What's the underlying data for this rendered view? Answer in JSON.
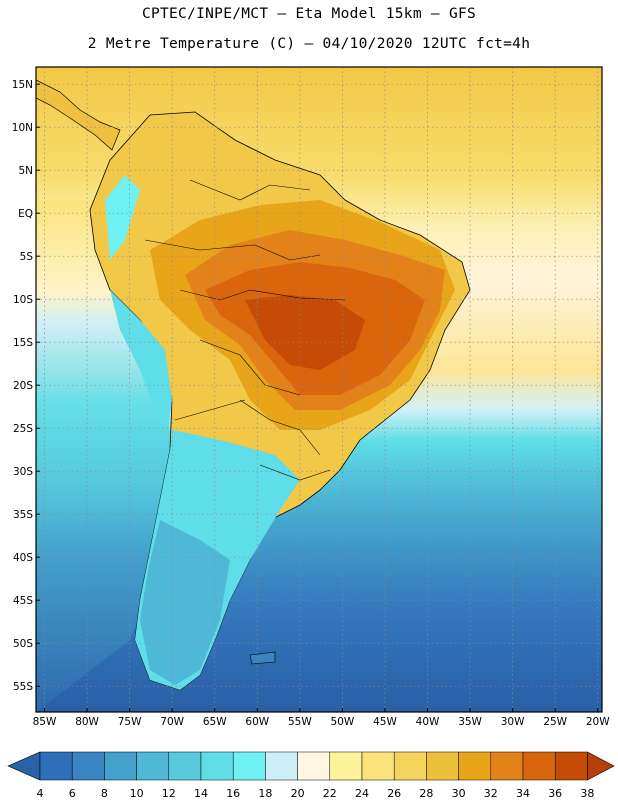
{
  "header": {
    "line1": "CPTEC/INPE/MCT –  Eta Model 15km – GFS",
    "line2": "2 Metre Temperature (C) – 04/10/2020 12UTC fct=4h"
  },
  "axes": {
    "lat_labels": [
      "15N",
      "10N",
      "5N",
      "EQ",
      "5S",
      "10S",
      "15S",
      "20S",
      "25S",
      "30S",
      "35S",
      "40S",
      "45S",
      "50S",
      "55S"
    ],
    "lat_values": [
      15,
      10,
      5,
      0,
      -5,
      -10,
      -15,
      -20,
      -25,
      -30,
      -35,
      -40,
      -45,
      -50,
      -55
    ],
    "lon_labels": [
      "85W",
      "80W",
      "75W",
      "70W",
      "65W",
      "60W",
      "55W",
      "50W",
      "45W",
      "40W",
      "35W",
      "30W",
      "25W",
      "20W"
    ],
    "lon_values": [
      -85,
      -80,
      -75,
      -70,
      -65,
      -60,
      -55,
      -50,
      -45,
      -40,
      -35,
      -30,
      -25,
      -20
    ],
    "lon_range": [
      -86,
      -19.5
    ],
    "lat_range": [
      -58,
      17
    ]
  },
  "colorbar": {
    "levels": [
      "4",
      "6",
      "8",
      "10",
      "12",
      "14",
      "16",
      "18",
      "20",
      "22",
      "24",
      "26",
      "28",
      "30",
      "32",
      "34",
      "36",
      "38"
    ],
    "colors": [
      "#2d6fb8",
      "#3a84c4",
      "#44a0cc",
      "#4fb8d6",
      "#57cade",
      "#5fdde8",
      "#6ff1f4",
      "#cfeff8",
      "#fff7e2",
      "#fef39a",
      "#fbe37a",
      "#f5d45e",
      "#edbf3c",
      "#e9a51a",
      "#e28218",
      "#d9650c",
      "#c44c06"
    ],
    "under_color": "#2a62a8",
    "over_color": "#b73f08"
  }
}
